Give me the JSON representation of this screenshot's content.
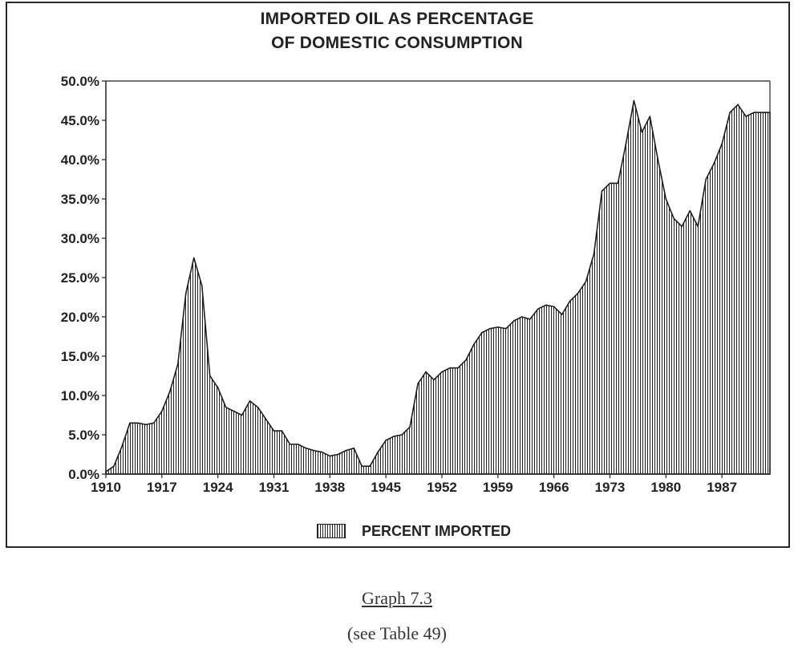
{
  "chart_data": {
    "type": "area",
    "title_lines": [
      "IMPORTED OIL AS PERCENTAGE",
      "OF DOMESTIC CONSUMPTION"
    ],
    "xlabel": "",
    "ylabel": "",
    "x_ticks": [
      1910,
      1917,
      1924,
      1931,
      1938,
      1945,
      1952,
      1959,
      1966,
      1973,
      1980,
      1987
    ],
    "y_ticks": [
      0,
      5,
      10,
      15,
      20,
      25,
      30,
      35,
      40,
      45,
      50
    ],
    "y_tick_labels": [
      "0.0%",
      "5.0%",
      "10.0%",
      "15.0%",
      "20.0%",
      "25.0%",
      "30.0%",
      "35.0%",
      "40.0%",
      "45.0%",
      "50.0%"
    ],
    "xlim": [
      1910,
      1993
    ],
    "ylim": [
      0,
      50
    ],
    "grid": false,
    "legend_position": "bottom-center",
    "fill_pattern": "vertical-hatch",
    "series": [
      {
        "name": "PERCENT IMPORTED",
        "x": [
          1910,
          1911,
          1912,
          1913,
          1914,
          1915,
          1916,
          1917,
          1918,
          1919,
          1920,
          1921,
          1922,
          1923,
          1924,
          1925,
          1926,
          1927,
          1928,
          1929,
          1930,
          1931,
          1932,
          1933,
          1934,
          1935,
          1936,
          1937,
          1938,
          1939,
          1940,
          1941,
          1942,
          1943,
          1944,
          1945,
          1946,
          1947,
          1948,
          1949,
          1950,
          1951,
          1952,
          1953,
          1954,
          1955,
          1956,
          1957,
          1958,
          1959,
          1960,
          1961,
          1962,
          1963,
          1964,
          1965,
          1966,
          1967,
          1968,
          1969,
          1970,
          1971,
          1972,
          1973,
          1974,
          1975,
          1976,
          1977,
          1978,
          1979,
          1980,
          1981,
          1982,
          1983,
          1984,
          1985,
          1986,
          1987,
          1988,
          1989,
          1990,
          1991,
          1992,
          1993
        ],
        "values": [
          0.3,
          1.0,
          3.5,
          6.5,
          6.5,
          6.3,
          6.5,
          8.0,
          10.5,
          14.0,
          23.0,
          27.5,
          24.0,
          12.5,
          11.0,
          8.5,
          8.0,
          7.5,
          9.3,
          8.5,
          7.0,
          5.5,
          5.5,
          3.8,
          3.8,
          3.3,
          3.0,
          2.8,
          2.3,
          2.5,
          3.0,
          3.3,
          1.0,
          1.0,
          2.8,
          4.3,
          4.8,
          5.0,
          6.0,
          11.5,
          13.0,
          12.0,
          13.0,
          13.5,
          13.5,
          14.5,
          16.5,
          18.0,
          18.5,
          18.7,
          18.5,
          19.5,
          20.0,
          19.7,
          21.0,
          21.5,
          21.3,
          20.3,
          22.0,
          23.0,
          24.5,
          28.0,
          36.0,
          37.0,
          37.0,
          42.0,
          47.5,
          43.5,
          45.5,
          40.0,
          35.0,
          32.5,
          31.5,
          33.5,
          31.5,
          37.5,
          39.5,
          42.0,
          46.0,
          47.0,
          45.5,
          46.0,
          46.0,
          46.0
        ]
      }
    ]
  },
  "legend": {
    "label": "PERCENT IMPORTED"
  },
  "captions": {
    "graph": "Graph 7.3",
    "reference": "(see Table 49)"
  }
}
